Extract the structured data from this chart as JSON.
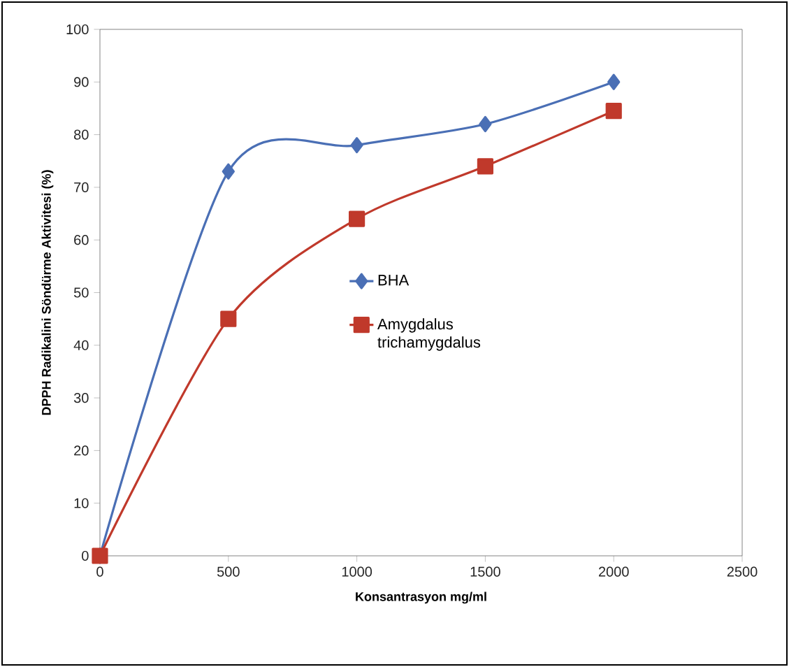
{
  "chart_data": {
    "type": "line",
    "xlabel": "Konsantrasyon mg/ml",
    "ylabel": "DPPH Radikalini Söndürme Aktivitesi (%)",
    "x": [
      0,
      500,
      1000,
      1500,
      2000
    ],
    "series": [
      {
        "name": "BHA",
        "color": "#4a6fb5",
        "marker": "diamond",
        "values": [
          0,
          73,
          78,
          82,
          90
        ]
      },
      {
        "name": "Amygdalus trichamygdalus",
        "color": "#c0392b",
        "marker": "square",
        "values": [
          0,
          45,
          64,
          74,
          84.5
        ]
      }
    ],
    "xlim": [
      0,
      2500
    ],
    "xticks": [
      0,
      500,
      1000,
      1500,
      2000,
      2500
    ],
    "ylim": [
      0,
      100
    ],
    "yticks": [
      0,
      10,
      20,
      30,
      40,
      50,
      60,
      70,
      80,
      90,
      100
    ],
    "grid": false,
    "legend": "center"
  }
}
